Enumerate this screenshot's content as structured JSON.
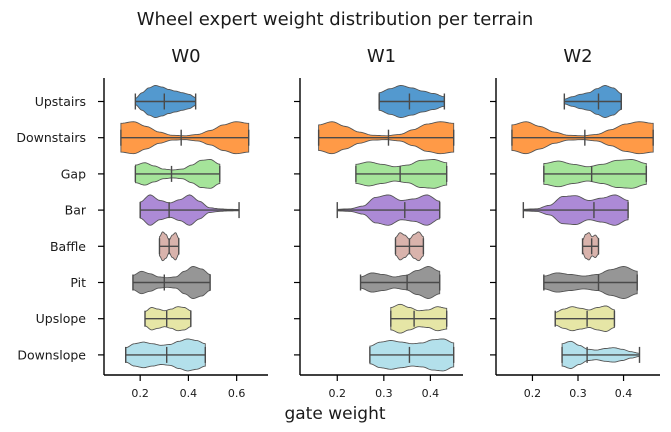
{
  "figure": {
    "suptitle": "Wheel expert weight distribution per terrain",
    "xlabel": "gate weight"
  },
  "chart_data": {
    "type": "violin",
    "title": "Wheel expert weight distribution per terrain",
    "xlabel": "gate weight",
    "terrains": [
      "Upstairs",
      "Downstairs",
      "Gap",
      "Bar",
      "Baffle",
      "Pit",
      "Upslope",
      "Downslope"
    ],
    "colors": [
      "#3b8bc8",
      "#ff8c2e",
      "#98e08c",
      "#a07ad0",
      "#d4a8a0",
      "#888888",
      "#e2e29a",
      "#a8dce8"
    ],
    "panels": [
      {
        "title": "W0",
        "xlim": [
          0.05,
          0.73
        ],
        "xticks": [
          0.2,
          0.4,
          0.6
        ],
        "xtick_labels": [
          "0.2",
          "0.4",
          "0.6"
        ],
        "violins": [
          {
            "terrain": "Upstairs",
            "min": 0.18,
            "max": 0.43,
            "median": 0.3,
            "profile": [
              0.2,
              0.55,
              0.85,
              1.0,
              0.9,
              0.75,
              0.65,
              0.55,
              0.45,
              0.25
            ]
          },
          {
            "terrain": "Downstairs",
            "min": 0.12,
            "max": 0.65,
            "median": 0.37,
            "profile": [
              0.9,
              1.0,
              0.7,
              0.35,
              0.15,
              0.12,
              0.2,
              0.45,
              0.8,
              1.0,
              0.9
            ]
          },
          {
            "terrain": "Gap",
            "min": 0.18,
            "max": 0.53,
            "median": 0.33,
            "profile": [
              0.55,
              0.7,
              0.5,
              0.3,
              0.25,
              0.3,
              0.55,
              0.85,
              0.9,
              0.6
            ]
          },
          {
            "terrain": "Bar",
            "min": 0.2,
            "max": 0.61,
            "median": 0.32,
            "profile": [
              0.5,
              0.95,
              0.6,
              0.45,
              0.65,
              0.95,
              0.55,
              0.15,
              0.08,
              0.05,
              0.04
            ]
          },
          {
            "terrain": "Baffle",
            "min": 0.28,
            "max": 0.36,
            "median": 0.32,
            "profile": [
              0.6,
              0.9,
              0.75,
              0.4,
              0.7,
              0.85,
              0.5
            ]
          },
          {
            "terrain": "Pit",
            "min": 0.17,
            "max": 0.49,
            "median": 0.3,
            "profile": [
              0.45,
              0.7,
              0.55,
              0.35,
              0.3,
              0.35,
              0.7,
              1.0,
              0.85,
              0.5
            ]
          },
          {
            "terrain": "Upslope",
            "min": 0.22,
            "max": 0.41,
            "median": 0.31,
            "profile": [
              0.45,
              0.7,
              0.6,
              0.5,
              0.6,
              0.75,
              0.7,
              0.5
            ]
          },
          {
            "terrain": "Downslope",
            "min": 0.14,
            "max": 0.47,
            "median": 0.31,
            "profile": [
              0.45,
              0.7,
              0.8,
              0.7,
              0.6,
              0.65,
              0.85,
              1.0,
              0.9,
              0.7
            ]
          }
        ]
      },
      {
        "title": "W1",
        "xlim": [
          0.12,
          0.47
        ],
        "xticks": [
          0.2,
          0.3,
          0.4
        ],
        "xtick_labels": [
          "0.2",
          "0.3",
          "0.4"
        ],
        "violins": [
          {
            "terrain": "Upstairs",
            "min": 0.29,
            "max": 0.43,
            "median": 0.355,
            "profile": [
              0.55,
              0.8,
              1.0,
              0.85,
              0.65,
              0.5,
              0.3
            ]
          },
          {
            "terrain": "Downstairs",
            "min": 0.16,
            "max": 0.45,
            "median": 0.31,
            "profile": [
              0.8,
              1.0,
              0.7,
              0.35,
              0.15,
              0.12,
              0.2,
              0.5,
              0.85,
              1.0,
              0.9
            ]
          },
          {
            "terrain": "Gap",
            "min": 0.24,
            "max": 0.435,
            "median": 0.335,
            "profile": [
              0.6,
              0.75,
              0.6,
              0.45,
              0.55,
              0.85,
              0.9,
              0.7
            ]
          },
          {
            "terrain": "Bar",
            "min": 0.2,
            "max": 0.42,
            "median": 0.345,
            "profile": [
              0.05,
              0.08,
              0.25,
              0.8,
              0.95,
              0.6,
              0.7,
              0.95,
              0.55
            ]
          },
          {
            "terrain": "Baffle",
            "min": 0.325,
            "max": 0.385,
            "median": 0.355,
            "profile": [
              0.55,
              0.85,
              0.7,
              0.45,
              0.75,
              0.9,
              0.6
            ]
          },
          {
            "terrain": "Pit",
            "min": 0.25,
            "max": 0.42,
            "median": 0.35,
            "profile": [
              0.35,
              0.6,
              0.5,
              0.35,
              0.45,
              0.75,
              1.0,
              0.7
            ]
          },
          {
            "terrain": "Upslope",
            "min": 0.315,
            "max": 0.435,
            "median": 0.365,
            "profile": [
              0.7,
              0.9,
              0.7,
              0.5,
              0.55,
              0.75,
              0.65
            ]
          },
          {
            "terrain": "Downslope",
            "min": 0.27,
            "max": 0.45,
            "median": 0.355,
            "profile": [
              0.55,
              0.8,
              0.9,
              0.8,
              0.7,
              0.75,
              0.95,
              1.0,
              0.75
            ]
          }
        ]
      },
      {
        "title": "W2",
        "xlim": [
          0.12,
          0.48
        ],
        "xticks": [
          0.2,
          0.3,
          0.4
        ],
        "xtick_labels": [
          "0.2",
          "0.3",
          "0.4"
        ],
        "violins": [
          {
            "terrain": "Upstairs",
            "min": 0.27,
            "max": 0.395,
            "median": 0.345,
            "profile": [
              0.15,
              0.3,
              0.45,
              0.55,
              0.8,
              1.0,
              0.85,
              0.5
            ]
          },
          {
            "terrain": "Downstairs",
            "min": 0.155,
            "max": 0.465,
            "median": 0.315,
            "profile": [
              0.8,
              1.0,
              0.7,
              0.35,
              0.15,
              0.12,
              0.2,
              0.5,
              0.85,
              1.0,
              0.9
            ]
          },
          {
            "terrain": "Gap",
            "min": 0.225,
            "max": 0.45,
            "median": 0.33,
            "profile": [
              0.65,
              0.8,
              0.6,
              0.45,
              0.6,
              0.85,
              0.9,
              0.65
            ]
          },
          {
            "terrain": "Bar",
            "min": 0.18,
            "max": 0.41,
            "median": 0.335,
            "profile": [
              0.05,
              0.08,
              0.3,
              0.85,
              0.9,
              0.6,
              0.75,
              0.95,
              0.6
            ]
          },
          {
            "terrain": "Baffle",
            "min": 0.31,
            "max": 0.345,
            "median": 0.33,
            "profile": [
              0.4,
              0.75,
              0.85,
              0.6,
              0.7,
              0.5
            ]
          },
          {
            "terrain": "Pit",
            "min": 0.225,
            "max": 0.43,
            "median": 0.345,
            "profile": [
              0.4,
              0.6,
              0.5,
              0.4,
              0.5,
              0.8,
              1.0,
              0.7
            ]
          },
          {
            "terrain": "Upslope",
            "min": 0.25,
            "max": 0.38,
            "median": 0.32,
            "profile": [
              0.4,
              0.6,
              0.75,
              0.65,
              0.55,
              0.7,
              0.8,
              0.55
            ]
          },
          {
            "terrain": "Downslope",
            "min": 0.265,
            "max": 0.435,
            "median": 0.32,
            "profile": [
              0.7,
              0.85,
              0.6,
              0.35,
              0.3,
              0.4,
              0.45,
              0.35,
              0.2,
              0.1
            ]
          }
        ]
      }
    ]
  }
}
